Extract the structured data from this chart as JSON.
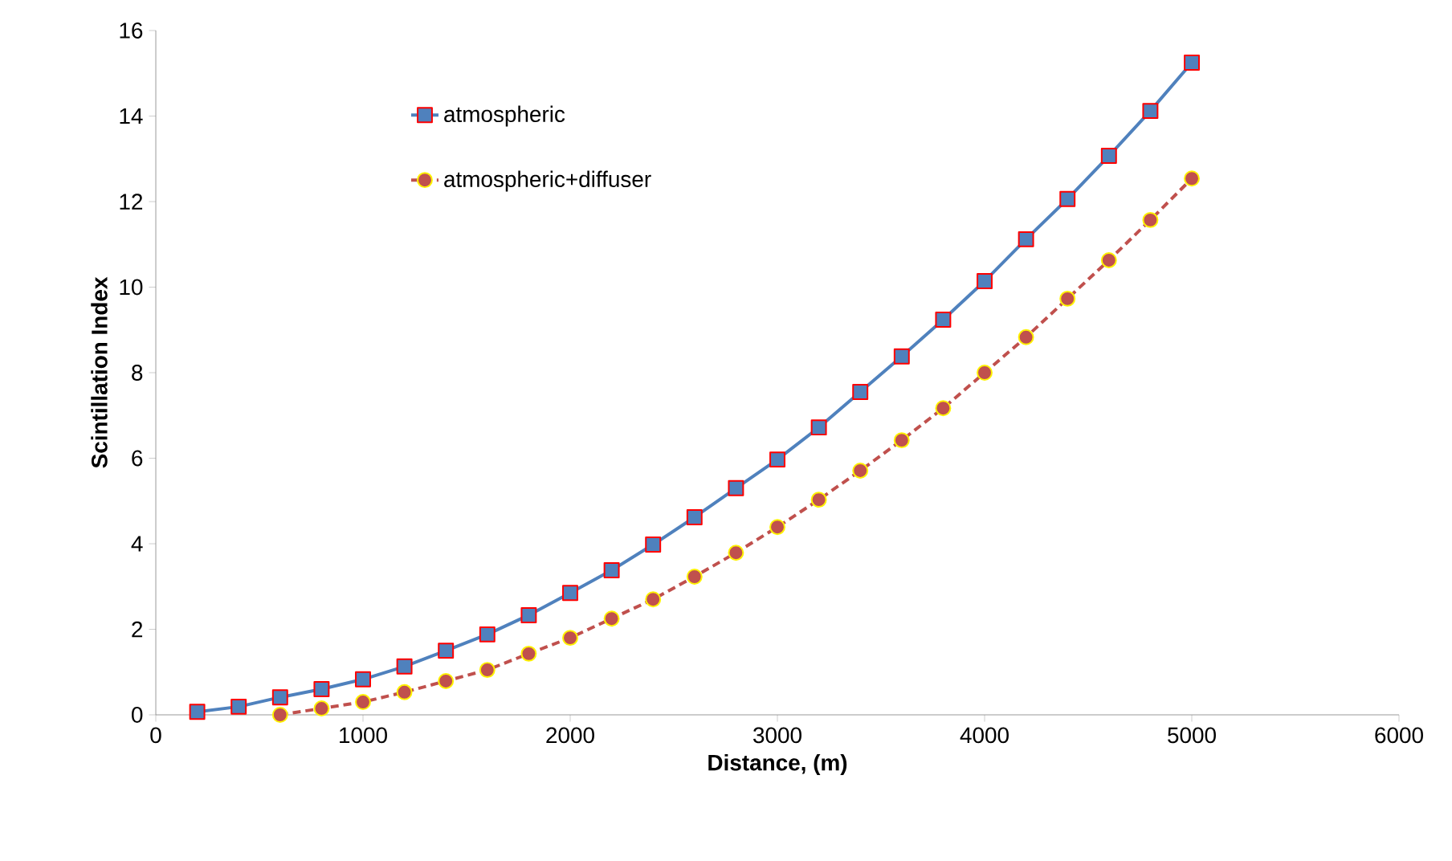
{
  "chart_data": {
    "type": "line",
    "xlabel": "Distance, (m)",
    "ylabel": "Scintillation Index",
    "xlim": [
      0,
      6000
    ],
    "ylim": [
      0,
      16
    ],
    "xticks": [
      0,
      1000,
      2000,
      3000,
      4000,
      5000,
      6000
    ],
    "yticks": [
      0,
      2,
      4,
      6,
      8,
      10,
      12,
      14,
      16
    ],
    "grid": false,
    "legend": "top left",
    "series": [
      {
        "name": "atmospheric",
        "color": "#4f81bd",
        "marker": "square",
        "line_style": "solid",
        "x": [
          200,
          400,
          600,
          800,
          1000,
          1200,
          1400,
          1600,
          1800,
          2000,
          2200,
          2400,
          2600,
          2800,
          3000,
          3200,
          3400,
          3600,
          3800,
          4000,
          4200,
          4400,
          4600,
          4800,
          5000
        ],
        "values": [
          0.07,
          0.19,
          0.41,
          0.6,
          0.83,
          1.13,
          1.5,
          1.88,
          2.33,
          2.85,
          3.38,
          3.98,
          4.62,
          5.3,
          5.97,
          6.72,
          7.55,
          8.38,
          9.24,
          10.14,
          11.12,
          12.06,
          13.07,
          14.12,
          15.25
        ]
      },
      {
        "name": "atmospheric+diffuser",
        "color": "#c0504d",
        "marker": "circle",
        "line_style": "dashed",
        "x": [
          600,
          800,
          1000,
          1200,
          1400,
          1600,
          1800,
          2000,
          2200,
          2400,
          2600,
          2800,
          3000,
          3200,
          3400,
          3600,
          3800,
          4000,
          4200,
          4400,
          4600,
          4800,
          5000
        ],
        "values": [
          0.0,
          0.15,
          0.3,
          0.53,
          0.79,
          1.05,
          1.43,
          1.8,
          2.25,
          2.7,
          3.23,
          3.79,
          4.39,
          5.03,
          5.71,
          6.42,
          7.17,
          8.0,
          8.83,
          9.73,
          10.63,
          11.57,
          12.54
        ]
      }
    ]
  }
}
